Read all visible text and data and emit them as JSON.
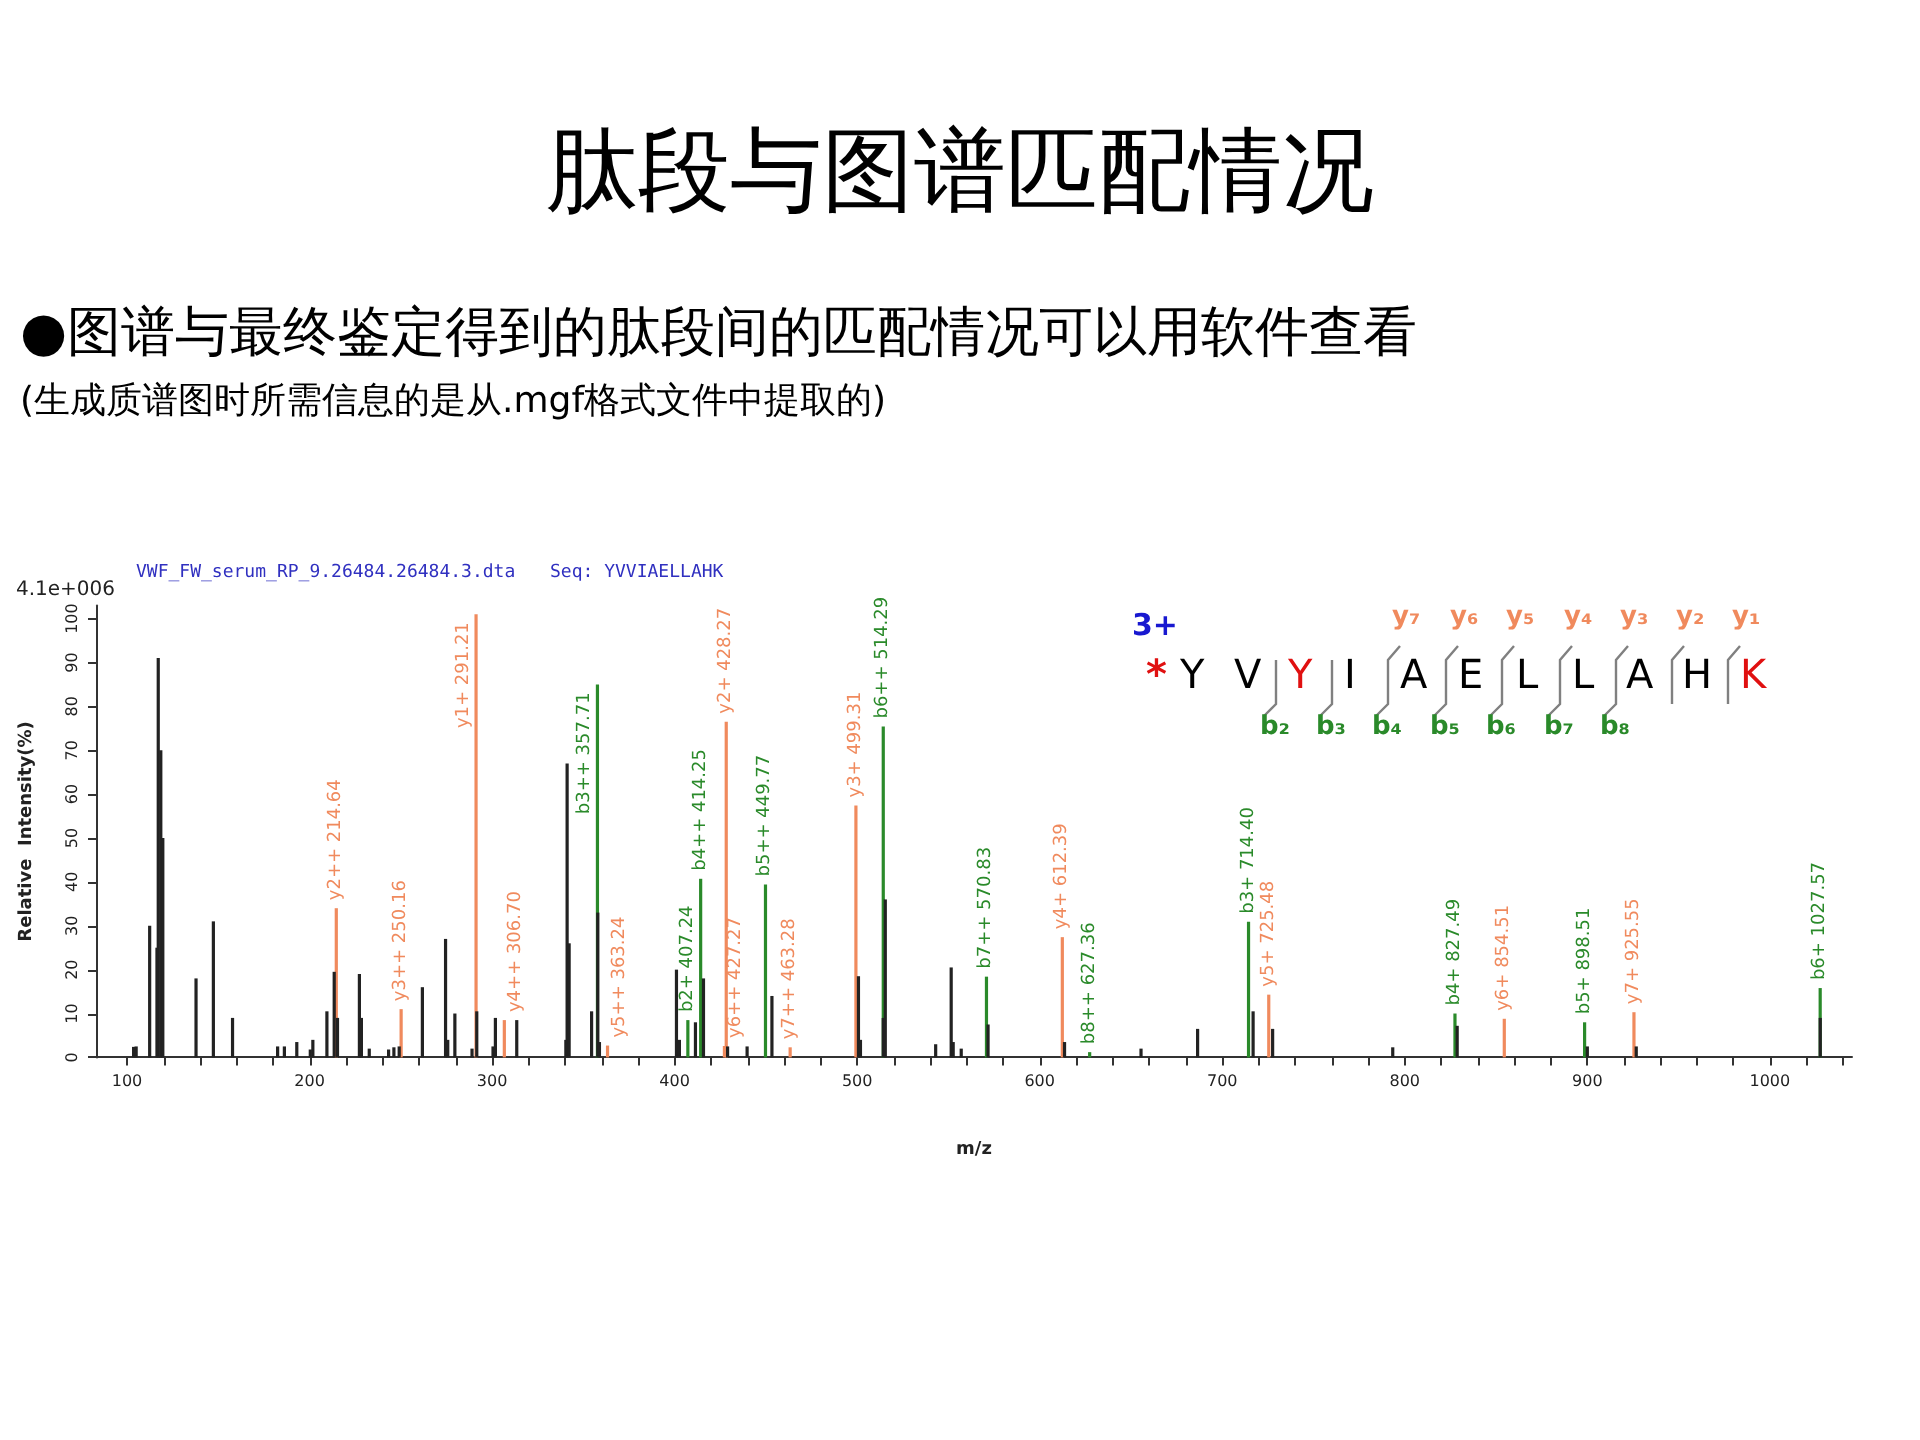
{
  "chart_data": {
    "type": "bar",
    "title": "肽段与图谱匹配情况",
    "subtitle": "●图谱与最终鉴定得到的肽段间的匹配情况可以用软件查看",
    "annotations": [
      "(生成质谱图时所需信息的是从.mgf格式文件中提取的)",
      "4.1e+006",
      "VWF_FW_serum_RP_9.26484.26484.3.dta",
      "Seq: YVVIAELLAHK",
      "3+",
      "*",
      "Y",
      "V",
      "Y",
      "I",
      "A",
      "E",
      "L",
      "L",
      "A",
      "H",
      "K",
      "y₇",
      "y₆",
      "y₅",
      "y₄",
      "y₃",
      "y₂",
      "y₁",
      "b₂",
      "b₃",
      "b₄",
      "b₅",
      "b₆",
      "b₇",
      "b₈"
    ],
    "xlabel": "m/z",
    "ylabel": "Relative  Intensity(%)",
    "xlim": [
      83,
      1045
    ],
    "ylim": [
      0,
      103
    ],
    "xticks": [
      100,
      {
        "value": 120,
        "label": null
      },
      {
        "value": 140,
        "label": null
      },
      {
        "value": 160,
        "label": null
      },
      {
        "value": 180,
        "label": null
      },
      200,
      {
        "value": 220,
        "label": null
      },
      {
        "value": 240,
        "label": null
      },
      {
        "value": 260,
        "label": null
      },
      {
        "value": 280,
        "label": null
      },
      300,
      {
        "value": 320,
        "label": null
      },
      {
        "value": 340,
        "label": null
      },
      {
        "value": 360,
        "label": null
      },
      {
        "value": 380,
        "label": null
      },
      400,
      {
        "value": 420,
        "label": null
      },
      {
        "value": 440,
        "label": null
      },
      {
        "value": 460,
        "label": null
      },
      {
        "value": 480,
        "label": null
      },
      500,
      {
        "value": 520,
        "label": null
      },
      {
        "value": 540,
        "label": null
      },
      {
        "value": 560,
        "label": null
      },
      {
        "value": 580,
        "label": null
      },
      600,
      {
        "value": 620,
        "label": null
      },
      {
        "value": 640,
        "label": null
      },
      {
        "value": 660,
        "label": null
      },
      {
        "value": 680,
        "label": null
      },
      700,
      {
        "value": 720,
        "label": null
      },
      {
        "value": 740,
        "label": null
      },
      {
        "value": 760,
        "label": null
      },
      {
        "value": 780,
        "label": null
      },
      800,
      {
        "value": 820,
        "label": null
      },
      {
        "value": 840,
        "label": null
      },
      {
        "value": 860,
        "label": null
      },
      {
        "value": 880,
        "label": null
      },
      900,
      {
        "value": 920,
        "label": null
      },
      {
        "value": 940,
        "label": null
      },
      {
        "value": 960,
        "label": null
      },
      {
        "value": 980,
        "label": null
      },
      1000,
      {
        "value": 1020,
        "label": null
      },
      {
        "value": 1040,
        "label": null
      }
    ],
    "yticks": [
      0,
      10,
      20,
      30,
      40,
      50,
      60,
      70,
      80,
      90,
      100
    ],
    "grid": false,
    "series": [
      {
        "color": "#222222",
        "x": [
          103.6,
          105,
          112.4,
          116.4,
          117.1,
          118.5,
          119.6,
          137.8,
          147.3,
          157.8,
          182.5,
          186.2,
          193,
          200.4,
          201.8,
          209.5,
          213.5,
          215.3,
          227.3,
          228.4,
          232.7,
          243.3,
          246.2,
          249.1,
          261.8,
          274.5,
          275.7,
          279.6,
          289,
          291.6,
          300.5,
          301.8,
          313.5,
          340.4,
          341.1,
          342.2,
          354.5,
          357.9,
          358.8,
          401,
          402.6,
          411.4,
          415.8,
          429,
          439.7,
          453.3,
          500.7,
          501.8,
          514.3,
          515.4,
          543,
          551.5,
          552.6,
          557,
          571.7,
          613.6,
          655.5,
          686.5,
          716.9,
          727.6,
          793.4,
          828.7,
          900,
          926.8,
          1027.6
        ],
        "values": [
          2.4,
          2.5,
          30,
          25,
          91,
          70,
          50,
          18,
          31,
          9,
          2.5,
          2.5,
          3.5,
          1.8,
          4,
          10.5,
          19.5,
          9,
          19,
          9,
          2,
          1.8,
          2.3,
          2.5,
          16,
          27,
          4,
          10,
          2,
          10.5,
          2.5,
          9,
          8.5,
          4,
          67,
          26,
          10.5,
          33,
          3.5,
          20,
          4,
          8,
          18,
          2.5,
          2.5,
          14,
          18.5,
          4,
          9,
          36,
          3,
          20.5,
          3.5,
          2,
          7.5,
          3.5,
          2,
          6.5,
          10.5,
          6.5,
          2.3,
          7.2,
          2.5,
          2.5,
          9
        ]
      },
      {
        "color": "#f08a5d",
        "x": [
          214.64,
          250.16,
          291.21,
          306.7,
          363.24,
          427.27,
          428.27,
          463.28,
          499.31,
          612.39,
          725.48,
          854.51,
          925.55
        ],
        "values": [
          34,
          11,
          101,
          8.5,
          2.7,
          2.6,
          76.5,
          2.3,
          57.4,
          27.4,
          14.3,
          8.8,
          10.3
        ],
        "value_labels": [
          "y2++ 214.64",
          "y3++ 250.16",
          "y1+ 291.21",
          "y4++ 306.70",
          "y5++ 363.24",
          "y6++ 427.27",
          "y2+ 428.27",
          "y7++ 463.28",
          "y3+ 499.31",
          "y4+ 612.39",
          "y5+ 725.48",
          "y6+ 854.51",
          "y7+ 925.55"
        ]
      },
      {
        "color": "#2a8a2a",
        "x": [
          357.71,
          407.24,
          414.25,
          449.77,
          514.29,
          570.83,
          627.36,
          714.4,
          827.49,
          898.51,
          1027.57
        ],
        "values": [
          85,
          8.5,
          40.7,
          39.4,
          75.4,
          18.4,
          1.2,
          30.9,
          10,
          8,
          15.8
        ],
        "value_labels": [
          "b3++ 357.71",
          "b2+ 407.24",
          "b4++ 414.25",
          "b5++ 449.77",
          "b6++ 514.29",
          "b7++ 570.83",
          "b8++ 627.36",
          "b3+ 714.40",
          "b4+ 827.49",
          "b5+ 898.51",
          "b6+ 1027.57"
        ]
      }
    ]
  }
}
